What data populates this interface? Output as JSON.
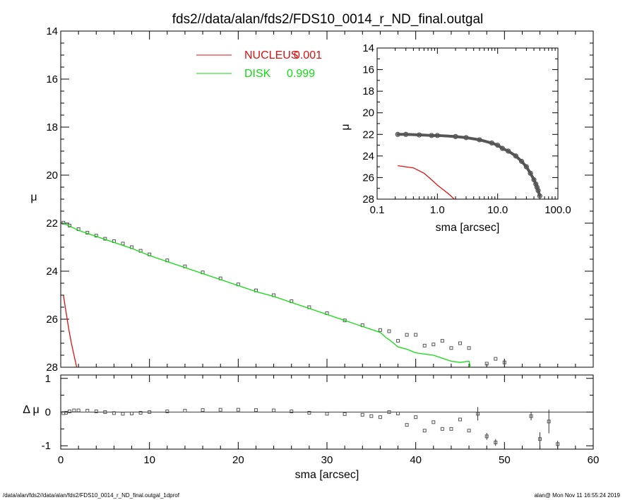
{
  "title": "fds2//data/alan/fds2/FDS10_0014_r_ND_final.outgal",
  "footer_left": "/data/alan/fds2//data/alan/fds2/FDS10_0014_r_ND_final.outgal_1dprof",
  "footer_right": "alan@  Mon Nov 11 16:55:24 2019",
  "colors": {
    "nucleus": "#dd1111",
    "disk": "#11dd11",
    "data": "#555555"
  },
  "chart_data": [
    {
      "type": "line",
      "panel": "main",
      "xlabel": "",
      "ylabel": "μ",
      "xlim": [
        0,
        60
      ],
      "ylim": [
        28,
        14
      ],
      "y_ticks": [
        14,
        16,
        18,
        20,
        22,
        24,
        26,
        28
      ],
      "legend": {
        "placement": "top-center",
        "entries": [
          {
            "label": "NUCLEUS",
            "value": "0.001",
            "color": "#dd1111"
          },
          {
            "label": "DISK",
            "value": "0.999",
            "color": "#11dd11"
          }
        ]
      },
      "series": [
        {
          "name": "data",
          "kind": "points",
          "x": [
            0.3,
            1,
            2,
            3,
            4,
            5,
            6,
            7,
            8,
            9,
            10,
            12,
            14,
            16,
            18,
            20,
            22,
            24,
            26,
            28,
            30,
            32,
            34,
            36,
            37,
            38,
            39,
            40,
            41,
            42,
            43,
            44,
            45,
            46,
            48,
            49,
            50
          ],
          "y": [
            21.98,
            22.1,
            22.25,
            22.4,
            22.52,
            22.65,
            22.75,
            22.85,
            23.0,
            23.15,
            23.3,
            23.55,
            23.8,
            24.05,
            24.3,
            24.55,
            24.8,
            25.0,
            25.25,
            25.5,
            25.75,
            26.05,
            26.25,
            26.45,
            26.5,
            26.9,
            26.65,
            26.65,
            27.1,
            27.05,
            26.9,
            27.2,
            27.0,
            27.2,
            27.85,
            27.65,
            27.8
          ]
        },
        {
          "name": "NUCLEUS",
          "kind": "line",
          "x": [
            0.3,
            0.6,
            0.9,
            1.2,
            1.5,
            1.8
          ],
          "y": [
            25.0,
            25.7,
            26.4,
            27.0,
            27.5,
            28.0
          ]
        },
        {
          "name": "DISK",
          "kind": "line",
          "x": [
            0.3,
            2,
            4,
            6,
            8,
            10,
            12,
            14,
            16,
            18,
            20,
            22,
            24,
            26,
            28,
            30,
            32,
            34,
            36,
            36.6,
            37,
            37.5,
            38,
            39,
            40,
            42,
            44,
            45,
            46,
            46.3
          ],
          "y": [
            22.0,
            22.3,
            22.55,
            22.8,
            23.05,
            23.35,
            23.6,
            23.85,
            24.1,
            24.35,
            24.6,
            24.85,
            25.05,
            25.3,
            25.55,
            25.8,
            26.05,
            26.3,
            26.55,
            26.75,
            26.85,
            27.0,
            27.15,
            27.25,
            27.4,
            27.5,
            27.75,
            27.8,
            27.75,
            28.2
          ]
        }
      ]
    },
    {
      "type": "line",
      "panel": "inset",
      "xscale": "log",
      "xlabel": "sma [arcsec]",
      "ylabel": "μ",
      "xlim": [
        0.1,
        100
      ],
      "ylim": [
        28,
        14
      ],
      "x_ticks": [
        "0.1",
        "1.0",
        "10.0",
        "100.0"
      ],
      "y_ticks": [
        14,
        16,
        18,
        20,
        22,
        24,
        26,
        28
      ],
      "series": [
        {
          "name": "data",
          "kind": "points",
          "x": [
            0.22,
            0.3,
            0.5,
            0.8,
            1.0,
            2,
            3,
            5,
            8,
            10,
            12,
            15,
            20,
            25,
            30,
            35,
            40,
            43,
            45,
            47,
            50
          ],
          "y": [
            22.0,
            22.0,
            22.05,
            22.1,
            22.1,
            22.2,
            22.3,
            22.5,
            22.8,
            23.0,
            23.3,
            23.55,
            24.0,
            24.5,
            25.0,
            25.6,
            26.2,
            26.6,
            26.9,
            27.2,
            27.7
          ]
        },
        {
          "name": "NUCLEUS",
          "kind": "line",
          "x": [
            0.22,
            0.4,
            0.6,
            0.8,
            1.0,
            1.3,
            1.6,
            1.9
          ],
          "y": [
            24.9,
            25.1,
            25.6,
            26.2,
            26.7,
            27.2,
            27.6,
            28.0
          ]
        }
      ]
    },
    {
      "type": "scatter",
      "panel": "residual",
      "xlabel": "sma [arcsec]",
      "ylabel": "Δ μ",
      "xlim": [
        0,
        60
      ],
      "ylim": [
        -1.1,
        1.1
      ],
      "x_ticks": [
        0,
        10,
        20,
        30,
        40,
        50,
        60
      ],
      "y_ticks": [
        -1,
        0,
        1
      ],
      "zero_line": true,
      "points": {
        "x": [
          0.3,
          0.6,
          1,
          1.5,
          2,
          3,
          4,
          5,
          6,
          7,
          8,
          9,
          10,
          12,
          14,
          16,
          18,
          20,
          22,
          24,
          26,
          28,
          30,
          32,
          34,
          35,
          36,
          37,
          38,
          39,
          40,
          41,
          42,
          43,
          44,
          45,
          46,
          47,
          48,
          49,
          53,
          54,
          55,
          56
        ],
        "y": [
          -0.03,
          -0.02,
          0.02,
          0.05,
          0.05,
          0.04,
          0.02,
          0.0,
          -0.03,
          -0.05,
          -0.04,
          -0.02,
          0.0,
          0.02,
          0.04,
          0.06,
          0.07,
          0.07,
          0.06,
          0.05,
          0.02,
          -0.02,
          -0.05,
          -0.06,
          -0.08,
          -0.12,
          -0.15,
          0.0,
          -0.04,
          -0.38,
          -0.15,
          -0.55,
          -0.3,
          -0.5,
          -0.5,
          -0.22,
          -0.55,
          -0.05,
          -0.72,
          -0.9,
          -0.12,
          -0.8,
          -0.28,
          -0.95
        ],
        "err": [
          0,
          0,
          0,
          0,
          0,
          0,
          0,
          0,
          0,
          0,
          0,
          0,
          0,
          0,
          0,
          0,
          0,
          0,
          0,
          0,
          0,
          0,
          0,
          0,
          0,
          0,
          0,
          0,
          0,
          0,
          0,
          0,
          0,
          0,
          0,
          0,
          0,
          0.2,
          0.1,
          0.1,
          0.12,
          0.2,
          0.35,
          0.1
        ]
      }
    }
  ]
}
